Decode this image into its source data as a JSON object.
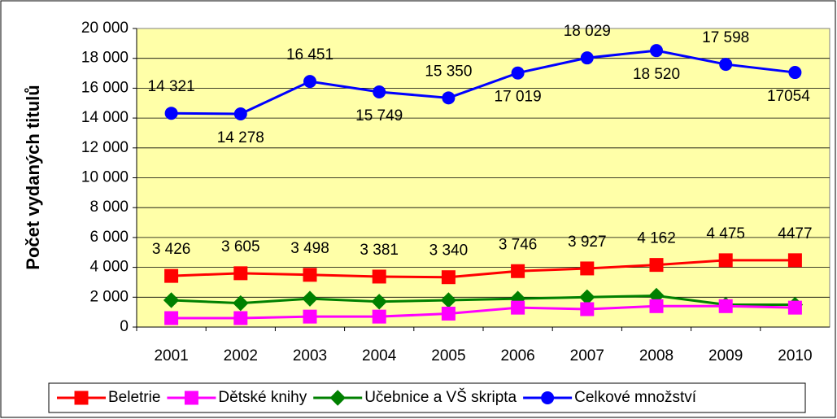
{
  "chart_data": {
    "type": "line",
    "ylabel": "Počet vydaných titulů",
    "categories": [
      "2001",
      "2002",
      "2003",
      "2004",
      "2005",
      "2006",
      "2007",
      "2008",
      "2009",
      "2010"
    ],
    "series": [
      {
        "name": "Beletrie",
        "color": "#ff0000",
        "marker": "square",
        "values": [
          3426,
          3605,
          3498,
          3381,
          3340,
          3746,
          3927,
          4162,
          4475,
          4477
        ],
        "value_labels": [
          "3 426",
          "3 605",
          "3 498",
          "3 381",
          "3 340",
          "3 746",
          "3 927",
          "4 162",
          "4 475",
          "4477"
        ]
      },
      {
        "name": "Dětské knihy",
        "color": "#ff00ff",
        "marker": "square",
        "values": [
          600,
          600,
          700,
          700,
          900,
          1300,
          1200,
          1400,
          1400,
          1300
        ]
      },
      {
        "name": "Učebnice a VŠ skripta",
        "color": "#008000",
        "marker": "diamond",
        "values": [
          1800,
          1600,
          1900,
          1700,
          1800,
          1900,
          2000,
          2100,
          1500,
          1500
        ]
      },
      {
        "name": "Celkové množství",
        "color": "#0000ff",
        "marker": "circle",
        "values": [
          14321,
          14278,
          16451,
          15749,
          15350,
          17019,
          18029,
          18520,
          17598,
          17054
        ],
        "value_labels": [
          "14 321",
          "14 278",
          "16 451",
          "15 749",
          "15 350",
          "17 019",
          "18 029",
          "18 520",
          "17 598",
          "17054"
        ]
      }
    ],
    "ylim": [
      0,
      20000
    ],
    "yticks": [
      0,
      {
        "value": 2000,
        "label": "2 000"
      },
      {
        "value": 4000,
        "label": "4 000"
      },
      {
        "value": 6000,
        "label": "6 000"
      },
      {
        "value": 8000,
        "label": "8 000"
      },
      {
        "value": 10000,
        "label": "10 000"
      },
      {
        "value": 12000,
        "label": "12 000"
      },
      {
        "value": 14000,
        "label": "14 000"
      },
      {
        "value": 16000,
        "label": "16 000"
      },
      {
        "value": 18000,
        "label": "18 000"
      },
      {
        "value": 20000,
        "label": "20 000"
      }
    ],
    "grid": true,
    "legend": "bottom"
  }
}
